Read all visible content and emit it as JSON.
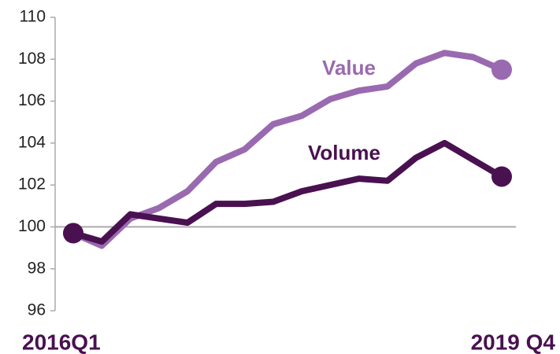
{
  "chart_data": {
    "type": "line",
    "categories": [
      "2016Q1",
      null,
      null,
      null,
      null,
      null,
      null,
      null,
      null,
      null,
      null,
      null,
      null,
      null,
      null,
      "2019 Q4"
    ],
    "series": [
      {
        "name": "Value",
        "color": "#9a6ab0",
        "values": [
          99.7,
          99.1,
          100.4,
          100.9,
          101.7,
          103.1,
          103.7,
          104.9,
          105.3,
          106.1,
          106.5,
          106.7,
          107.8,
          108.3,
          108.1,
          107.5
        ]
      },
      {
        "name": "Volume",
        "color": "#4a1150",
        "values": [
          99.7,
          99.3,
          100.6,
          100.4,
          100.2,
          101.1,
          101.1,
          101.2,
          101.7,
          102.0,
          102.3,
          102.2,
          103.3,
          104.0,
          103.2,
          102.4
        ]
      }
    ],
    "ylim": [
      96,
      110
    ],
    "yticks": [
      96,
      98,
      100,
      102,
      104,
      106,
      108,
      110
    ],
    "reference_line": 100,
    "end_markers": true
  }
}
